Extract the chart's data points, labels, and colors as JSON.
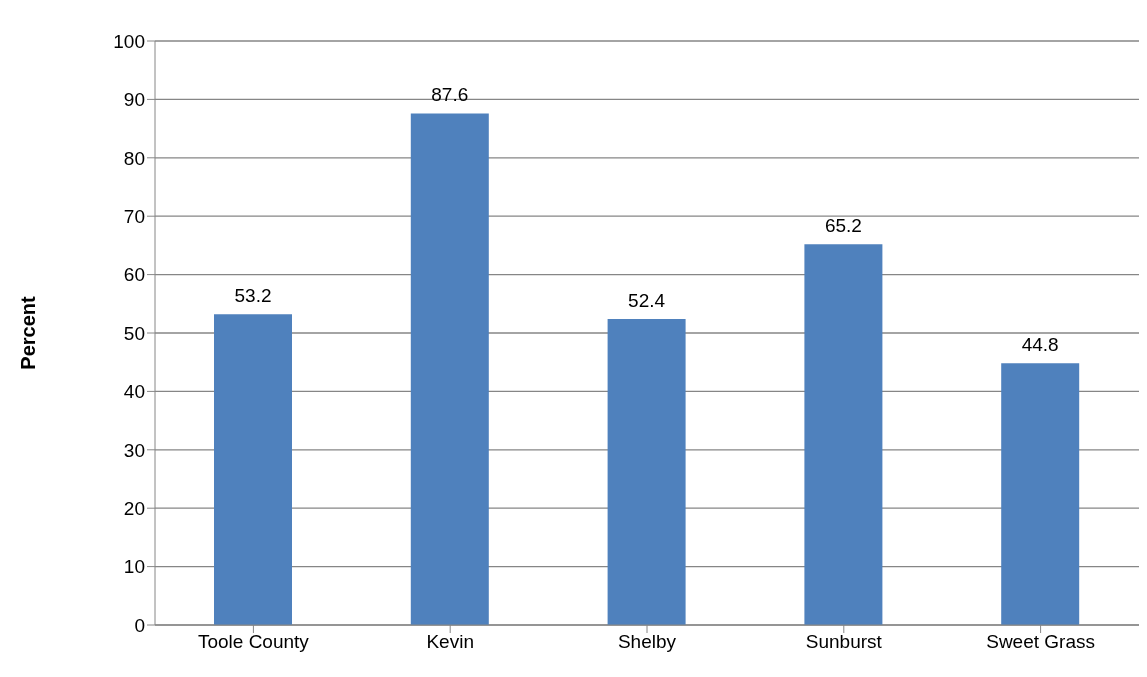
{
  "chart_data": {
    "type": "bar",
    "ylabel": "Percent",
    "categories": [
      "Toole County",
      "Kevin",
      "Shelby",
      "Sunburst",
      "Sweet Grass"
    ],
    "values": [
      53.2,
      87.6,
      52.4,
      65.2,
      44.8
    ],
    "color": "#4f81bd",
    "ylim": [
      0,
      100
    ],
    "yticks": [
      0,
      10,
      20,
      30,
      40,
      50,
      60,
      70,
      80,
      90,
      100
    ],
    "grid": "y",
    "data_labels": true
  }
}
